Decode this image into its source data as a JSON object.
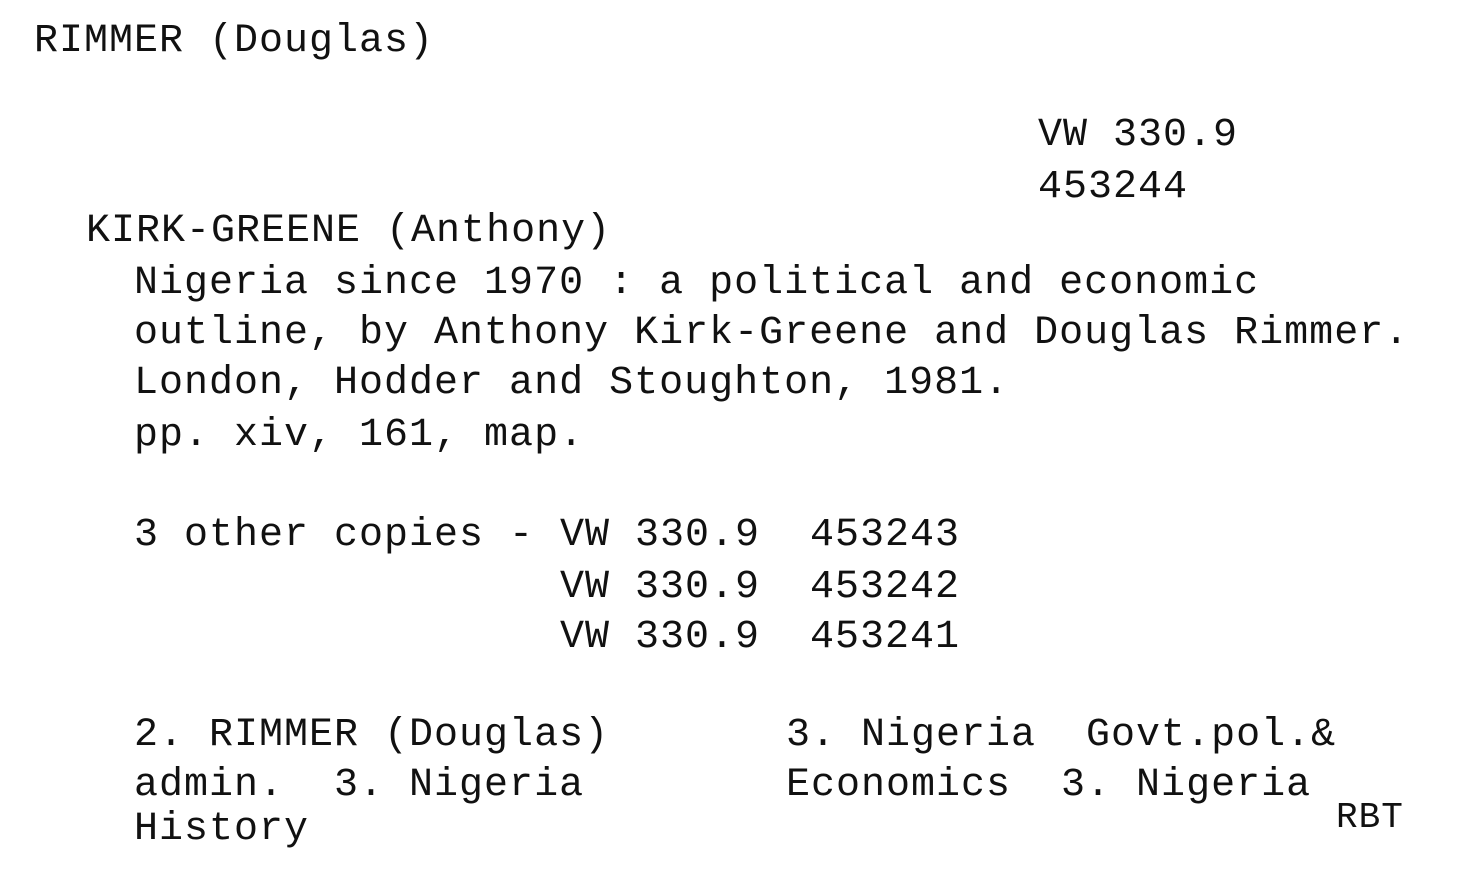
{
  "card": {
    "heading": "RIMMER (Douglas)",
    "call_number": {
      "class": "VW 330.9",
      "accession": "453244"
    },
    "main_entry": "KIRK-GREENE (Anthony)",
    "description": [
      "Nigeria since 1970 : a political and economic",
      "outline, by Anthony Kirk-Greene and Douglas Rimmer.",
      "London, Hodder and Stoughton, 1981.",
      "pp. xiv, 161, map."
    ],
    "other_copies": {
      "label": "3 other copies - ",
      "items": [
        "VW 330.9  453243",
        "VW 330.9  453242",
        "VW 330.9  453241"
      ]
    },
    "tracings_left": [
      "2. RIMMER (Douglas)",
      "admin.  3. Nigeria",
      "History"
    ],
    "tracings_right": [
      "3. Nigeria  Govt.pol.&",
      "Economics  3. Nigeria"
    ],
    "initials": "RBT"
  }
}
